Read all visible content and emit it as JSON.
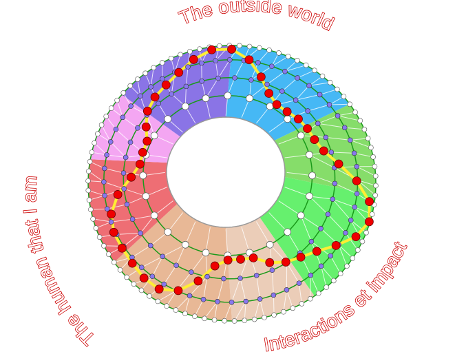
{
  "labels": {
    "top": "The outside world",
    "left": "The human that I am",
    "right": "Interactions et impact"
  },
  "colors": {
    "label_stroke": "#cc0000",
    "ring_line": "#1a9a1a",
    "path": "#ffee33",
    "path_node": "#ee0000",
    "mid_node": "#8877ee",
    "edge_node": "#ffffff",
    "sectors": [
      "#46b8f5",
      "#86dd6a",
      "#66f06e",
      "#ebcdb8",
      "#e8b896",
      "#ee6e74",
      "#f4a6f2",
      "#8a74e6"
    ]
  }
}
